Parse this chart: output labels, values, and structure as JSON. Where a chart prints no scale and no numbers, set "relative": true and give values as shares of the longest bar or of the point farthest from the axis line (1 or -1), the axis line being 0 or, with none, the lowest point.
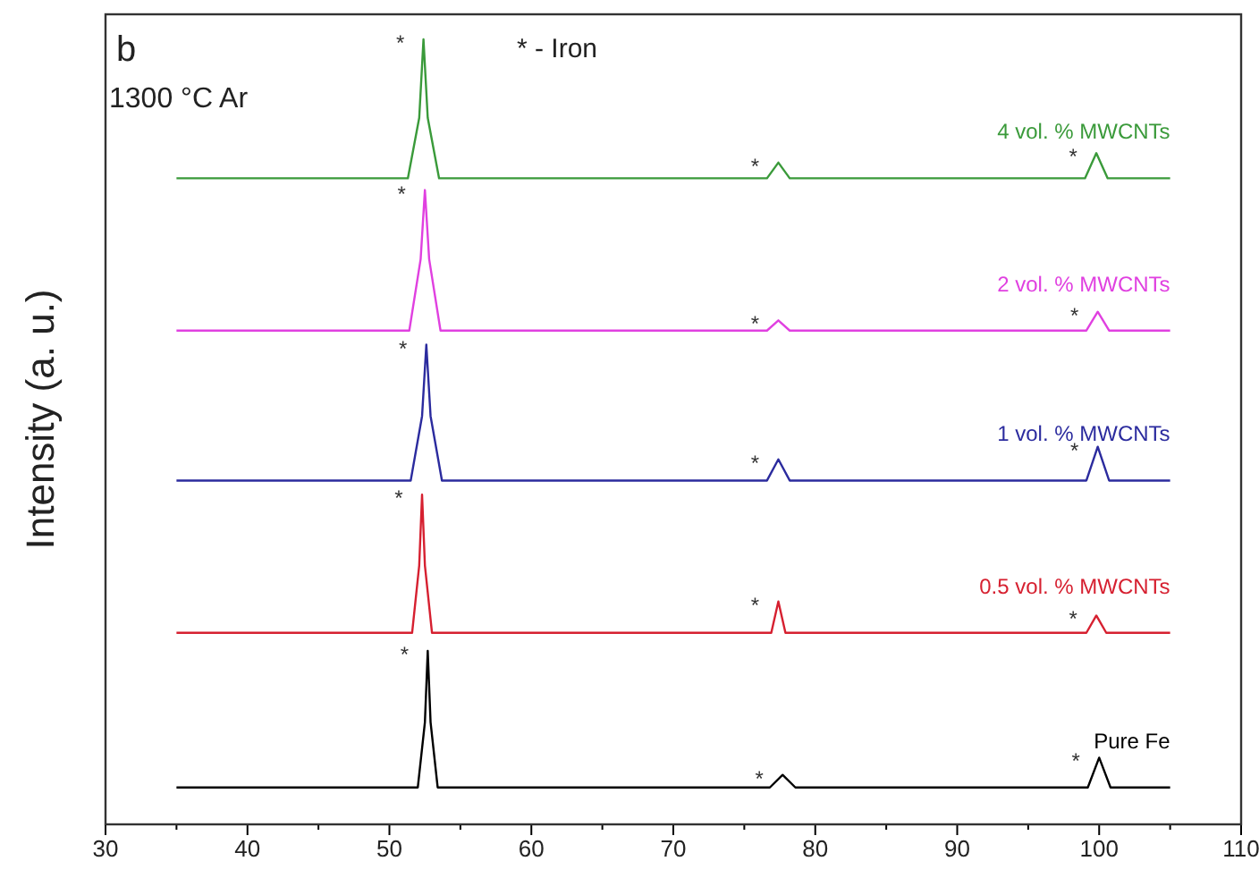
{
  "chart_data": {
    "type": "line",
    "relative": true,
    "ylabel": "Intensity (a. u.)",
    "xlim": [
      30,
      110
    ],
    "xticks": [
      30,
      {
        "value": 35,
        "label": null
      },
      40,
      {
        "value": 45,
        "label": null
      },
      50,
      {
        "value": 55,
        "label": null
      },
      60,
      {
        "value": 65,
        "label": null
      },
      70,
      {
        "value": 75,
        "label": null
      },
      80,
      {
        "value": 85,
        "label": null
      },
      90,
      {
        "value": 95,
        "label": null
      },
      100,
      {
        "value": 105,
        "label": null
      },
      110
    ],
    "tick_labels": "x",
    "grid": false,
    "marker": "none",
    "line_style": "solid",
    "series": [
      {
        "name": "4 vol. % MWCNTs",
        "color": "#3a9a3a",
        "x": [
          35,
          51.3,
          52.1,
          52.4,
          52.7,
          53.5,
          76.6,
          77.4,
          78.2,
          99.0,
          99.8,
          100.6,
          105
        ],
        "values": [
          0.823,
          0.823,
          0.9,
          1.0,
          0.9,
          0.823,
          0.823,
          0.843,
          0.823,
          0.823,
          0.855,
          0.823,
          0.823
        ]
      },
      {
        "name": "2 vol. % MWCNTs",
        "color": "#e040e0",
        "x": [
          35,
          51.4,
          52.2,
          52.5,
          52.8,
          53.6,
          76.6,
          77.4,
          78.2,
          99.1,
          99.9,
          100.7,
          105
        ],
        "values": [
          0.629,
          0.629,
          0.72,
          0.808,
          0.72,
          0.629,
          0.629,
          0.642,
          0.629,
          0.629,
          0.653,
          0.629,
          0.629
        ]
      },
      {
        "name": "1 vol. % MWCNTs",
        "color": "#2b2b9e",
        "x": [
          35,
          51.5,
          52.3,
          52.6,
          52.9,
          53.7,
          76.6,
          77.4,
          78.2,
          99.1,
          99.9,
          100.7,
          105
        ],
        "values": [
          0.438,
          0.438,
          0.52,
          0.611,
          0.52,
          0.438,
          0.438,
          0.465,
          0.438,
          0.438,
          0.481,
          0.438,
          0.438
        ]
      },
      {
        "name": "0.5 vol. % MWCNTs",
        "color": "#d62030",
        "x": [
          35,
          51.6,
          52.1,
          52.3,
          52.5,
          53.0,
          76.9,
          77.4,
          77.9,
          99.1,
          99.8,
          100.5,
          105
        ],
        "values": [
          0.244,
          0.244,
          0.33,
          0.42,
          0.33,
          0.244,
          0.244,
          0.284,
          0.244,
          0.244,
          0.266,
          0.244,
          0.244
        ]
      },
      {
        "name": "Pure Fe",
        "color": "#000000",
        "x": [
          35,
          52.0,
          52.5,
          52.7,
          52.9,
          53.4,
          76.8,
          77.7,
          78.6,
          99.2,
          100.0,
          100.8,
          105
        ],
        "values": [
          0.047,
          0.047,
          0.13,
          0.221,
          0.13,
          0.047,
          0.047,
          0.063,
          0.047,
          0.047,
          0.085,
          0.047,
          0.047
        ]
      }
    ],
    "annotations": [
      "b",
      "1300 °C Ar",
      "* - Iron",
      {
        "text": "*",
        "x": 52.4,
        "y": 1.0
      },
      {
        "text": "*",
        "x": 77.4,
        "y": 0.843
      },
      {
        "text": "*",
        "x": 99.8,
        "y": 0.855
      },
      {
        "text": "*",
        "x": 52.5,
        "y": 0.808
      },
      {
        "text": "*",
        "x": 77.4,
        "y": 0.642
      },
      {
        "text": "*",
        "x": 99.9,
        "y": 0.653
      },
      {
        "text": "*",
        "x": 52.6,
        "y": 0.611
      },
      {
        "text": "*",
        "x": 77.4,
        "y": 0.465
      },
      {
        "text": "*",
        "x": 99.9,
        "y": 0.481
      },
      {
        "text": "*",
        "x": 52.3,
        "y": 0.42
      },
      {
        "text": "*",
        "x": 77.4,
        "y": 0.284
      },
      {
        "text": "*",
        "x": 99.8,
        "y": 0.266
      },
      {
        "text": "*",
        "x": 52.7,
        "y": 0.221
      },
      {
        "text": "*",
        "x": 77.7,
        "y": 0.063
      },
      {
        "text": "*",
        "x": 100.0,
        "y": 0.085
      }
    ]
  }
}
